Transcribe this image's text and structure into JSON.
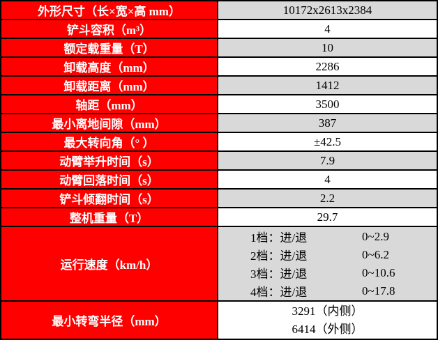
{
  "table": {
    "style": {
      "label_bg": "#FF0000",
      "label_text_color": "#FFFFFF",
      "value_bg_gray": "#D9D9D9",
      "value_bg_white": "#FFFFFF",
      "border_color": "#000000"
    },
    "rows": [
      {
        "label": "外形尺寸（长×宽×高 mm）",
        "value": "10172x2613x2384"
      },
      {
        "label": "铲斗容积（m³）",
        "value": "4"
      },
      {
        "label": "额定载重量（T）",
        "value": "10"
      },
      {
        "label": "卸载高度（mm）",
        "value": "2286"
      },
      {
        "label": "卸载距离（mm）",
        "value": "1412"
      },
      {
        "label": "轴距（mm）",
        "value": "3500"
      },
      {
        "label": "最小离地间隙（mm）",
        "value": "387"
      },
      {
        "label": "最大转向角（° ）",
        "value": "±42.5"
      },
      {
        "label": "动臂举升时间（s）",
        "value": "7.9"
      },
      {
        "label": "动臂回落时间（s）",
        "value": "4"
      },
      {
        "label": "铲斗倾翻时间（s）",
        "value": "2.2"
      },
      {
        "label": "整机重量（T）",
        "value": "29.7"
      }
    ],
    "speed_row": {
      "label": "运行速度（km/h）",
      "gears": [
        {
          "gear": "1档：进/退",
          "range": "0~2.9"
        },
        {
          "gear": "2档：进/退",
          "range": "0~6.2"
        },
        {
          "gear": "3档：进/退",
          "range": "0~10.6"
        },
        {
          "gear": "4档：进/退",
          "range": "0~17.8"
        }
      ]
    },
    "radius_row": {
      "label": "最小转弯半径（mm）",
      "values": [
        "3291（内侧）",
        "6414（外侧）"
      ]
    }
  }
}
